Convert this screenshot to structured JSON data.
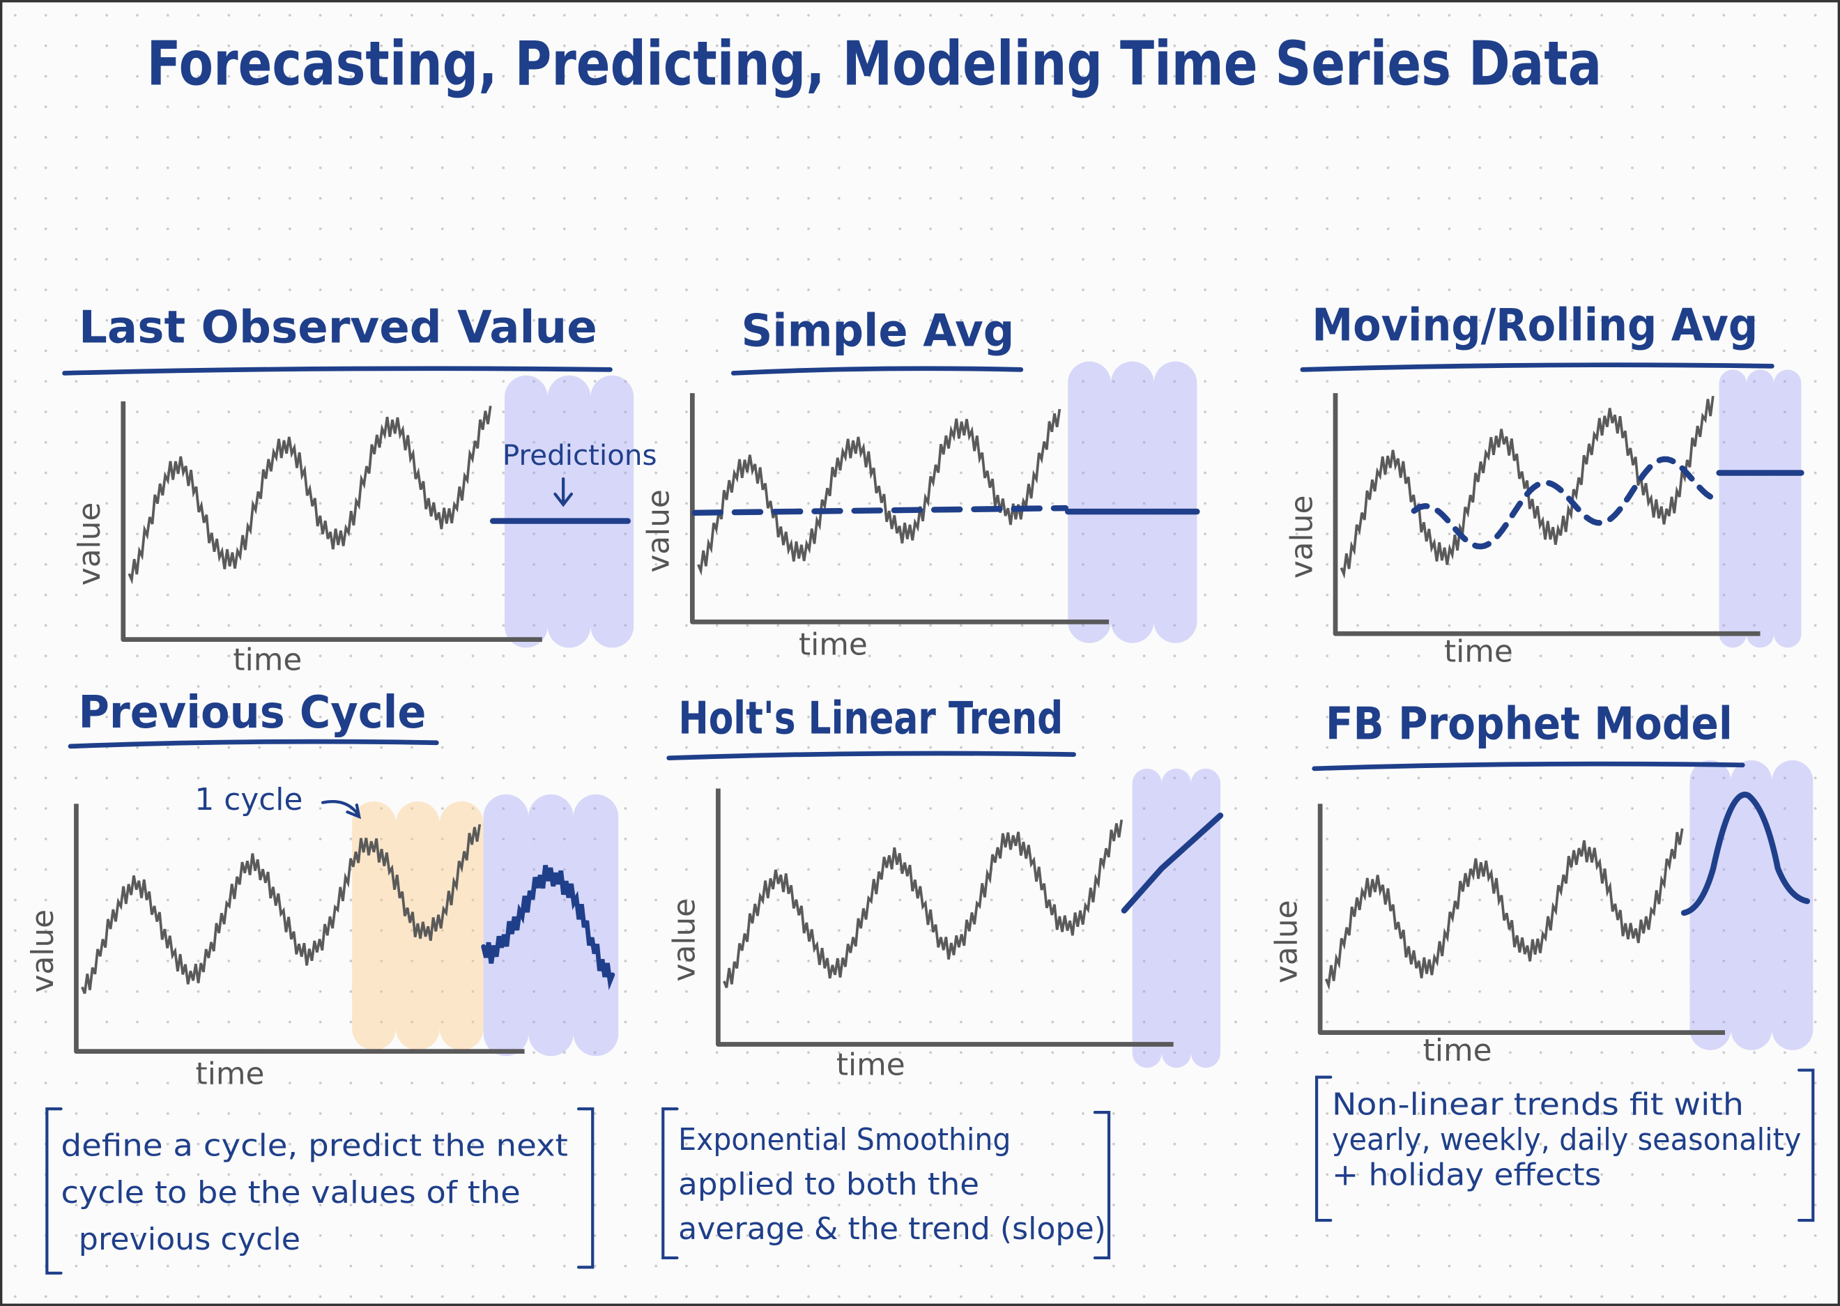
{
  "title": "Forecasting, Predicting, Modeling Time Series Data",
  "panels": [
    {
      "title": "Last Observed Value",
      "y_label": "value",
      "x_label": "time",
      "annotation": "Predictions"
    },
    {
      "title": "Simple Avg",
      "y_label": "value",
      "x_label": "time"
    },
    {
      "title": "Moving/Rolling Avg",
      "y_label": "value",
      "x_label": "time"
    },
    {
      "title": "Previous Cycle",
      "y_label": "value",
      "x_label": "time",
      "annotation": "1 cycle"
    },
    {
      "title": "Holt's Linear Trend",
      "y_label": "value",
      "x_label": "time"
    },
    {
      "title": "FB Prophet Model",
      "y_label": "value",
      "x_label": "time"
    }
  ],
  "notes": [
    [
      "define a cycle, predict the next",
      "cycle to be the values of the",
      "previous cycle"
    ],
    [
      "Exponential Smoothing",
      "applied to both the",
      "average & the trend (slope)"
    ],
    [
      "Non-linear trends fit with",
      "yearly, weekly, daily seasonality",
      "+ holiday effects"
    ]
  ]
}
